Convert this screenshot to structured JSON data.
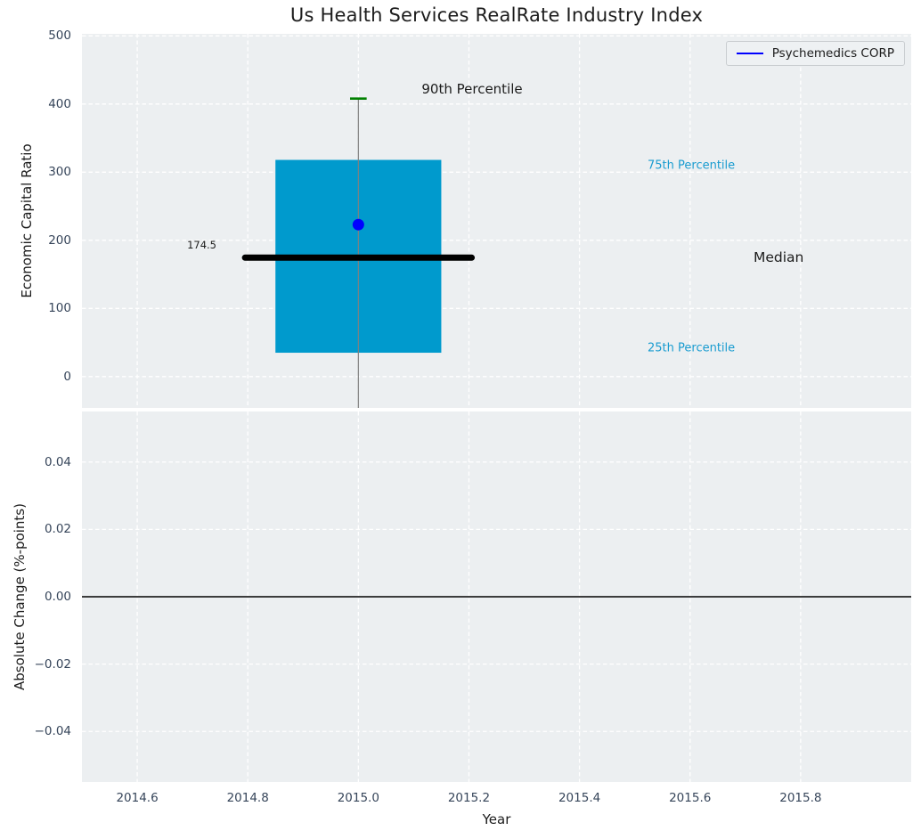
{
  "figure": {
    "title": "Us Health Services RealRate Industry Index"
  },
  "top_axes": {
    "ylabel": "Economic Capital Ratio",
    "yticks": {
      "labels": [
        "0",
        "100",
        "200",
        "300",
        "400",
        "500"
      ],
      "values": [
        0,
        100,
        200,
        300,
        400,
        500
      ]
    },
    "annotations": {
      "p90": "90th Percentile",
      "p75": "75th Percentile",
      "median": "Median",
      "p25": "25th Percentile",
      "median_value": "174.5"
    },
    "legend": {
      "label": "Psychemedics CORP"
    }
  },
  "bottom_axes": {
    "ylabel": "Absolute Change (%-points)",
    "xlabel": "Year",
    "yticks": {
      "labels": [
        "0.04",
        "0.02",
        "0.00",
        "−0.02",
        "−0.04"
      ],
      "values": [
        0.04,
        0.02,
        0,
        -0.02,
        -0.04
      ]
    }
  },
  "xticks": {
    "labels": [
      "2014.6",
      "2014.8",
      "2015.0",
      "2015.2",
      "2015.4",
      "2015.6",
      "2015.8"
    ],
    "values": [
      2014.6,
      2014.8,
      2015.0,
      2015.2,
      2015.4,
      2015.6,
      2015.8
    ]
  },
  "colors": {
    "axes_background": "#eceff1",
    "grid": "#ffffff",
    "tick_label": "#36455a",
    "box_fill": "#009acd",
    "median_line": "#000000",
    "whisker": "#808080",
    "p90_cap": "#008000",
    "company_point": "#0000ff",
    "percentile_label": "#1a9cd0",
    "zero_line": "#000000"
  },
  "chart_data": [
    {
      "type": "boxplot",
      "title": "Us Health Services RealRate Industry Index",
      "xlabel": "",
      "ylabel": "Economic Capital Ratio",
      "xlim": [
        2014.5,
        2016.0
      ],
      "ylim": [
        -46,
        503
      ],
      "grid": true,
      "legend_position": "upper right",
      "yticks": [
        0,
        100,
        200,
        300,
        400,
        500
      ],
      "box": {
        "x": 2015.0,
        "box_half_width": 0.15,
        "median_half_width": 0.205,
        "cap_half_width": 0.015,
        "p25": 35,
        "median": 174.5,
        "p75": 318,
        "p90": 408,
        "whisker_low_clipped_at": -46,
        "median_label": "174.5"
      },
      "series": [
        {
          "name": "Psychemedics CORP",
          "type": "scatter",
          "x": [
            2015.0
          ],
          "y": [
            223
          ]
        }
      ],
      "annotations": [
        "90th Percentile",
        "75th Percentile",
        "Median",
        "25th Percentile"
      ]
    },
    {
      "type": "line",
      "title": "",
      "xlabel": "Year",
      "ylabel": "Absolute Change (%-points)",
      "xlim": [
        2014.5,
        2016.0
      ],
      "ylim": [
        -0.055,
        0.055
      ],
      "grid": true,
      "yticks": [
        0.04,
        0.02,
        0.0,
        -0.02,
        -0.04
      ],
      "xticks": [
        2014.6,
        2014.8,
        2015.0,
        2015.2,
        2015.4,
        2015.6,
        2015.8
      ],
      "series": [],
      "reference_line_y": 0.0
    }
  ]
}
